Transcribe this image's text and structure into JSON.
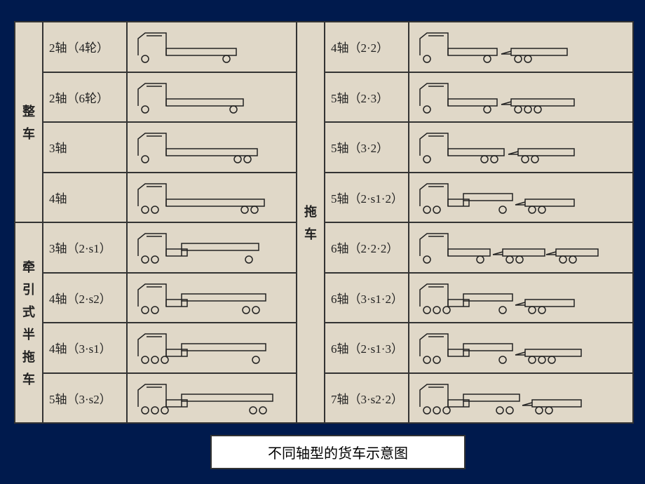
{
  "caption": "不同轴型的货车示意图",
  "categories": {
    "left_top": "整车",
    "left_bottom": "牵引式半拖车",
    "right": "拖车"
  },
  "left_top_rows": [
    {
      "label": "2轴（4轮）",
      "truck": {
        "type": "rigid",
        "cab_wheels": [
          1
        ],
        "bed_wheels": [
          1
        ],
        "bed_len": 100
      }
    },
    {
      "label": "2轴（6轮）",
      "truck": {
        "type": "rigid",
        "cab_wheels": [
          1
        ],
        "bed_wheels": [
          2
        ],
        "bed_len": 110,
        "dual_rear": true
      }
    },
    {
      "label": "3轴",
      "truck": {
        "type": "rigid",
        "cab_wheels": [
          1
        ],
        "bed_wheels": [
          1,
          1
        ],
        "bed_len": 130
      }
    },
    {
      "label": "4轴",
      "truck": {
        "type": "rigid",
        "cab_wheels": [
          1,
          1
        ],
        "bed_wheels": [
          1,
          1
        ],
        "bed_len": 140
      }
    }
  ],
  "left_bottom_rows": [
    {
      "label": "3轴（2·s1）",
      "truck": {
        "type": "semi",
        "cab_wheels": [
          1,
          1
        ],
        "trailer_wheels": [
          1
        ],
        "trailer_len": 110
      }
    },
    {
      "label": "4轴（2·s2）",
      "truck": {
        "type": "semi",
        "cab_wheels": [
          1,
          1
        ],
        "trailer_wheels": [
          1,
          1
        ],
        "trailer_len": 120
      }
    },
    {
      "label": "4轴（3·s1）",
      "truck": {
        "type": "semi",
        "cab_wheels": [
          1,
          1,
          1
        ],
        "trailer_wheels": [
          1
        ],
        "trailer_len": 120
      }
    },
    {
      "label": "5轴（3·s2）",
      "truck": {
        "type": "semi",
        "cab_wheels": [
          1,
          1,
          1
        ],
        "trailer_wheels": [
          1,
          1
        ],
        "trailer_len": 130
      }
    }
  ],
  "right_rows": [
    {
      "label": "4轴（2·2）",
      "truck": {
        "type": "combo",
        "rigid": {
          "cab_wheels": [
            1
          ],
          "bed_wheels": [
            1
          ],
          "bed_len": 70
        },
        "dolly_wheels": [
          1,
          1
        ],
        "dolly_len": 80
      }
    },
    {
      "label": "5轴（2·3）",
      "truck": {
        "type": "combo",
        "rigid": {
          "cab_wheels": [
            1
          ],
          "bed_wheels": [
            1
          ],
          "bed_len": 70
        },
        "dolly_wheels": [
          1,
          1,
          1
        ],
        "dolly_len": 90
      }
    },
    {
      "label": "5轴（3·2）",
      "truck": {
        "type": "combo",
        "rigid": {
          "cab_wheels": [
            1
          ],
          "bed_wheels": [
            1,
            1
          ],
          "bed_len": 80
        },
        "dolly_wheels": [
          1,
          1
        ],
        "dolly_len": 80
      }
    },
    {
      "label": "5轴（2·s1·2）",
      "truck": {
        "type": "semi_combo",
        "cab_wheels": [
          1,
          1
        ],
        "semi_wheels": [
          1
        ],
        "semi_len": 70,
        "dolly_wheels": [
          1,
          1
        ],
        "dolly_len": 70
      }
    },
    {
      "label": "6轴（2·2·2）",
      "truck": {
        "type": "combo2",
        "rigid": {
          "cab_wheels": [
            1
          ],
          "bed_wheels": [
            1
          ],
          "bed_len": 60
        },
        "dolly1_wheels": [
          1,
          1
        ],
        "dolly1_len": 60,
        "dolly2_wheels": [
          1,
          1
        ],
        "dolly2_len": 60
      }
    },
    {
      "label": "6轴（3·s1·2）",
      "truck": {
        "type": "semi_combo",
        "cab_wheels": [
          1,
          1,
          1
        ],
        "semi_wheels": [
          1
        ],
        "semi_len": 70,
        "dolly_wheels": [
          1,
          1
        ],
        "dolly_len": 70
      }
    },
    {
      "label": "6轴（2·s1·3）",
      "truck": {
        "type": "semi_combo",
        "cab_wheels": [
          1,
          1
        ],
        "semi_wheels": [
          1
        ],
        "semi_len": 70,
        "dolly_wheels": [
          1,
          1,
          1
        ],
        "dolly_len": 80
      }
    },
    {
      "label": "7轴（3·s2·2）",
      "truck": {
        "type": "semi_combo",
        "cab_wheels": [
          1,
          1,
          1
        ],
        "semi_wheels": [
          1,
          1
        ],
        "semi_len": 80,
        "dolly_wheels": [
          1,
          1
        ],
        "dolly_len": 70
      }
    }
  ],
  "colors": {
    "page_bg": "#001a4d",
    "paper_bg": "#e0d8c8",
    "line": "#222222",
    "fill": "#e0d8c8"
  },
  "stroke_width": 1.5,
  "wheel_radius": 5
}
